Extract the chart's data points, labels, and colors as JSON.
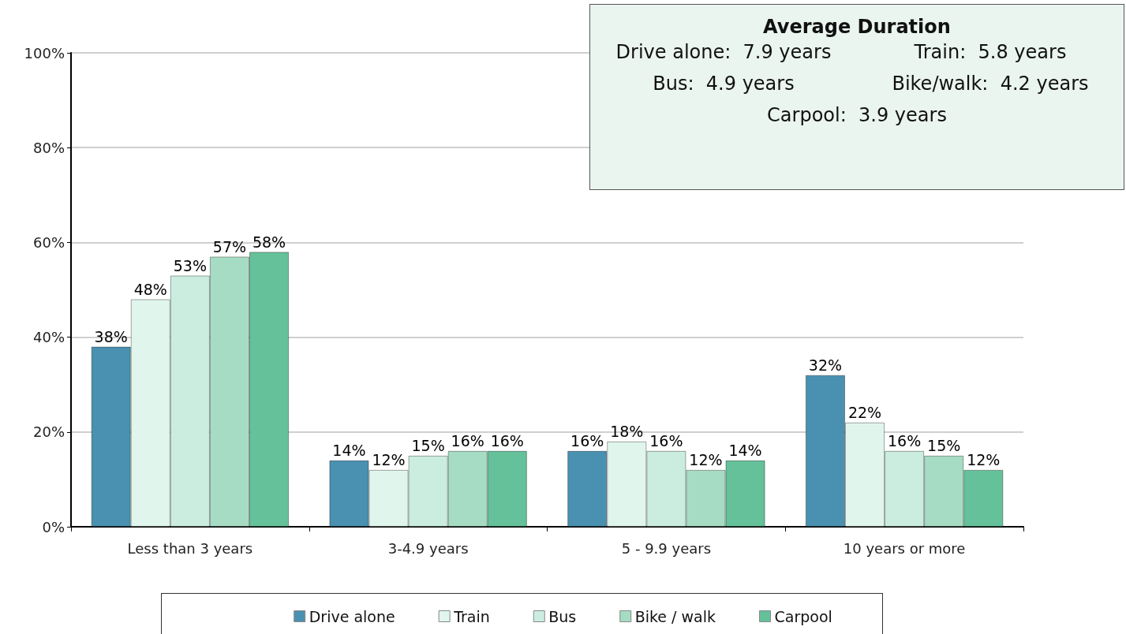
{
  "chart_data": {
    "type": "bar",
    "categories": [
      "Less than 3 years",
      "3-4.9 years",
      "5 - 9.9 years",
      "10 years or more"
    ],
    "series": [
      {
        "name": "Drive alone",
        "color": "#4a90b0",
        "values": [
          38,
          14,
          16,
          32
        ],
        "value_labels": [
          "38%",
          "14%",
          "16%",
          "32%"
        ]
      },
      {
        "name": "Train",
        "color": "#e0f6ec",
        "values": [
          48,
          12,
          18,
          22
        ],
        "value_labels": [
          "48%",
          "12%",
          "18%",
          "22%"
        ]
      },
      {
        "name": "Bus",
        "color": "#cbede0",
        "values": [
          53,
          15,
          16,
          16
        ],
        "value_labels": [
          "53%",
          "15%",
          "16%",
          "16%"
        ]
      },
      {
        "name": "Bike / walk",
        "color": "#a5dcc3",
        "values": [
          57,
          16,
          12,
          15
        ],
        "value_labels": [
          "57%",
          "16%",
          "12%",
          "15%"
        ]
      },
      {
        "name": "Carpool",
        "color": "#64c199",
        "values": [
          58,
          16,
          14,
          12
        ],
        "value_labels": [
          "58%",
          "16%",
          "14%",
          "12%"
        ]
      }
    ],
    "ylim": [
      0,
      100
    ],
    "yticks": [
      {
        "value": 0,
        "label": "0%"
      },
      {
        "value": 20,
        "label": "20%"
      },
      {
        "value": 40,
        "label": "40%"
      },
      {
        "value": 60,
        "label": "60%"
      },
      {
        "value": 80,
        "label": "80%"
      },
      {
        "value": 100,
        "label": "100%"
      }
    ],
    "grid": "y",
    "legend": "bottom",
    "annotations": [
      "Average Duration",
      "Drive alone:  7.9 years",
      "Train:  5.8 years",
      "Bus:  4.9 years",
      "Bike/walk:  4.2 years",
      "Carpool:  3.9 years"
    ]
  }
}
